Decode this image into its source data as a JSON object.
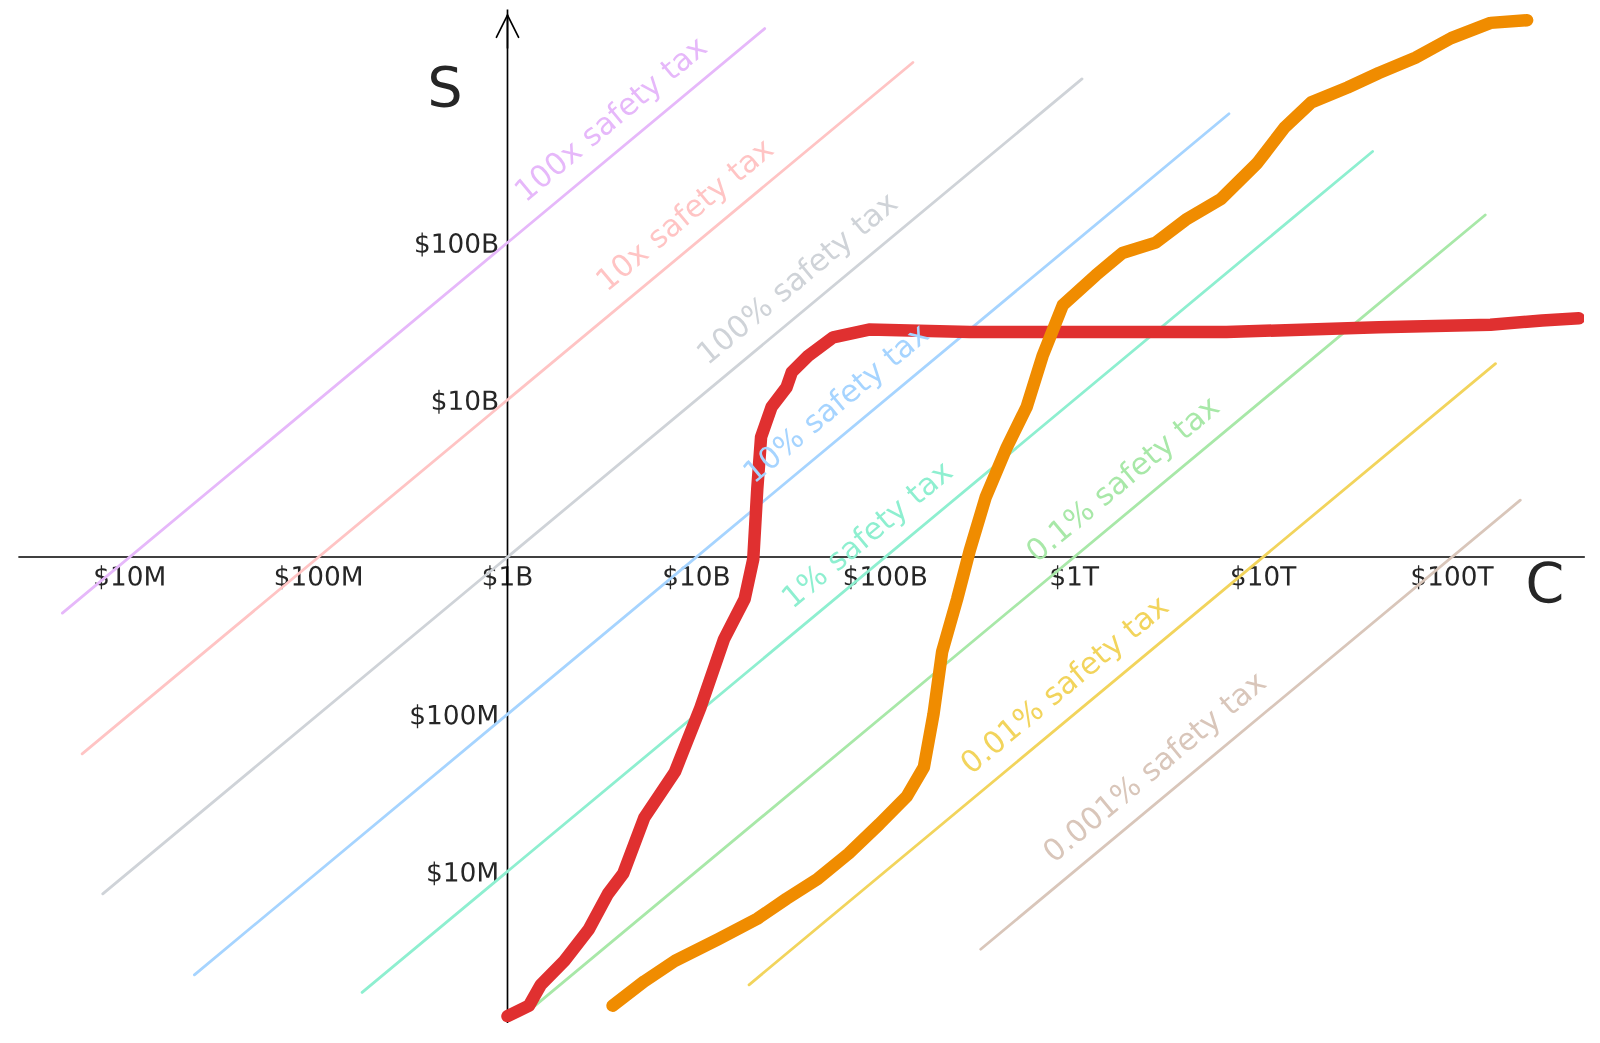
{
  "chart_data": {
    "type": "line",
    "xlabel": "C",
    "ylabel": "S",
    "log": "xy",
    "grid": false,
    "marker": "none",
    "line_style": "solid",
    "xlim": [
      2600000.0,
      500000000000000.0
    ],
    "ylim": [
      1100000.0,
      3000000000000.0
    ],
    "xticks": [
      {
        "value": 10000000.0,
        "label": "$10M"
      },
      {
        "value": 100000000.0,
        "label": "$100M"
      },
      {
        "value": 1000000000.0,
        "label": "$1B"
      },
      {
        "value": 10000000000.0,
        "label": "$10B"
      },
      {
        "value": 100000000000.0,
        "label": "$100B"
      },
      {
        "value": 1000000000000.0,
        "label": "$1T"
      },
      {
        "value": 10000000000000.0,
        "label": "$10T"
      },
      {
        "value": 100000000000000.0,
        "label": "$100T"
      }
    ],
    "yticks": [
      {
        "value": 10000000.0,
        "label": "$10M"
      },
      {
        "value": 100000000.0,
        "label": "$100M"
      },
      {
        "value": 10000000000.0,
        "label": "$10B"
      },
      {
        "value": 100000000000.0,
        "label": "$100B"
      }
    ],
    "series": [
      {
        "name": "100x safety tax",
        "color": "#e6b8fa",
        "x": [
          4400000.0,
          23000000000.0
        ],
        "values": [
          440000000.0,
          2300000000000.0
        ]
      },
      {
        "name": "10x safety tax",
        "color": "#ffc4c4",
        "x": [
          5600000.0,
          140000000000.0
        ],
        "values": [
          56000000.0,
          1400000000000.0
        ]
      },
      {
        "name": "100% safety tax",
        "color": "#cfd3d8",
        "x": [
          7200000.0,
          1100000000000.0
        ],
        "values": [
          7200000.0,
          1100000000000.0
        ]
      },
      {
        "name": "10% safety tax",
        "color": "#a6d4ff",
        "x": [
          22000000.0,
          6600000000000.0
        ],
        "values": [
          2200000.0,
          660000000000.0
        ]
      },
      {
        "name": "1% safety tax",
        "color": "#8eefd0",
        "x": [
          170000000.0,
          38000000000000.0
        ],
        "values": [
          1700000.0,
          380000000000.0
        ]
      },
      {
        "name": "0.1% safety tax",
        "color": "#a8e8a8",
        "x": [
          1400000000.0,
          150000000000000.0
        ],
        "values": [
          1400000.0,
          150000000000.0
        ]
      },
      {
        "name": "0.01% safety tax",
        "color": "#f2d45c",
        "x": [
          19000000000.0,
          170000000000000.0
        ],
        "values": [
          1900000.0,
          17000000000.0
        ]
      },
      {
        "name": "0.001% safety tax",
        "color": "#d9c6ba",
        "x": [
          320000000000.0,
          230000000000000.0
        ],
        "values": [
          3200000.0,
          2300000000.0
        ]
      },
      {
        "color": "#e03030",
        "x": [
          1000000000.0,
          1300000000.0,
          1500000000.0,
          2000000000.0,
          2700000000.0,
          3400000000.0,
          4100000000.0,
          5300000000.0,
          7700000000.0,
          10500000000.0,
          14000000000.0,
          18000000000.0,
          20000000000.0,
          21000000000.0,
          22000000000.0,
          25000000000.0,
          30000000000.0,
          32000000000.0,
          39000000000.0,
          53000000000.0,
          82000000000.0,
          280000000000.0,
          990000000000.0,
          6400000000000.0,
          41000000000000.0,
          160000000000000.0,
          300000000000000.0,
          470000000000000.0
        ],
        "values": [
          1200000.0,
          1400000.0,
          1900000.0,
          2700000.0,
          4300000.0,
          7200000.0,
          9700000.0,
          22000000.0,
          43000000.0,
          110000000.0,
          300000000.0,
          540000000.0,
          970000000.0,
          2700000000.0,
          5800000000.0,
          9000000000.0,
          12000000000.0,
          15000000000.0,
          19000000000.0,
          25000000000.0,
          28000000000.0,
          27000000000.0,
          27000000000.0,
          27000000000.0,
          29000000000.0,
          30000000000.0,
          32000000000.0,
          33000000000.0
        ]
      },
      {
        "color": "#f08c00",
        "x": [
          3600000000.0,
          5300000000.0,
          7700000000.0,
          13000000000.0,
          21000000000.0,
          30000000000.0,
          44000000000.0,
          64000000000.0,
          93000000000.0,
          130000000000.0,
          160000000000.0,
          180000000000.0,
          200000000000.0,
          240000000000.0,
          280000000000.0,
          340000000000.0,
          440000000000.0,
          560000000000.0,
          680000000000.0,
          870000000000.0,
          1300000000000.0,
          1800000000000.0,
          2700000000000.0,
          3900000000000.0,
          6000000000000.0,
          9300000000000.0,
          13000000000000.0,
          18000000000000.0,
          28000000000000.0,
          41000000000000.0,
          64000000000000.0,
          99000000000000.0,
          160000000000000.0,
          250000000000000.0
        ],
        "values": [
          1400000.0,
          2000000.0,
          2700000.0,
          3700000.0,
          5000000.0,
          6700000.0,
          9000000.0,
          13000000.0,
          20000000.0,
          30000000.0,
          46000000.0,
          100000000.0,
          250000000.0,
          540000000.0,
          1100000000.0,
          2400000000.0,
          5000000000.0,
          9000000000.0,
          19000000000.0,
          40000000000.0,
          62000000000.0,
          86000000000.0,
          100000000000.0,
          140000000000.0,
          190000000000.0,
          320000000000.0,
          540000000000.0,
          780000000000.0,
          970000000000.0,
          1200000000000.0,
          1500000000000.0,
          2000000000000.0,
          2500000000000.0,
          2600000000000.0
        ]
      }
    ]
  }
}
